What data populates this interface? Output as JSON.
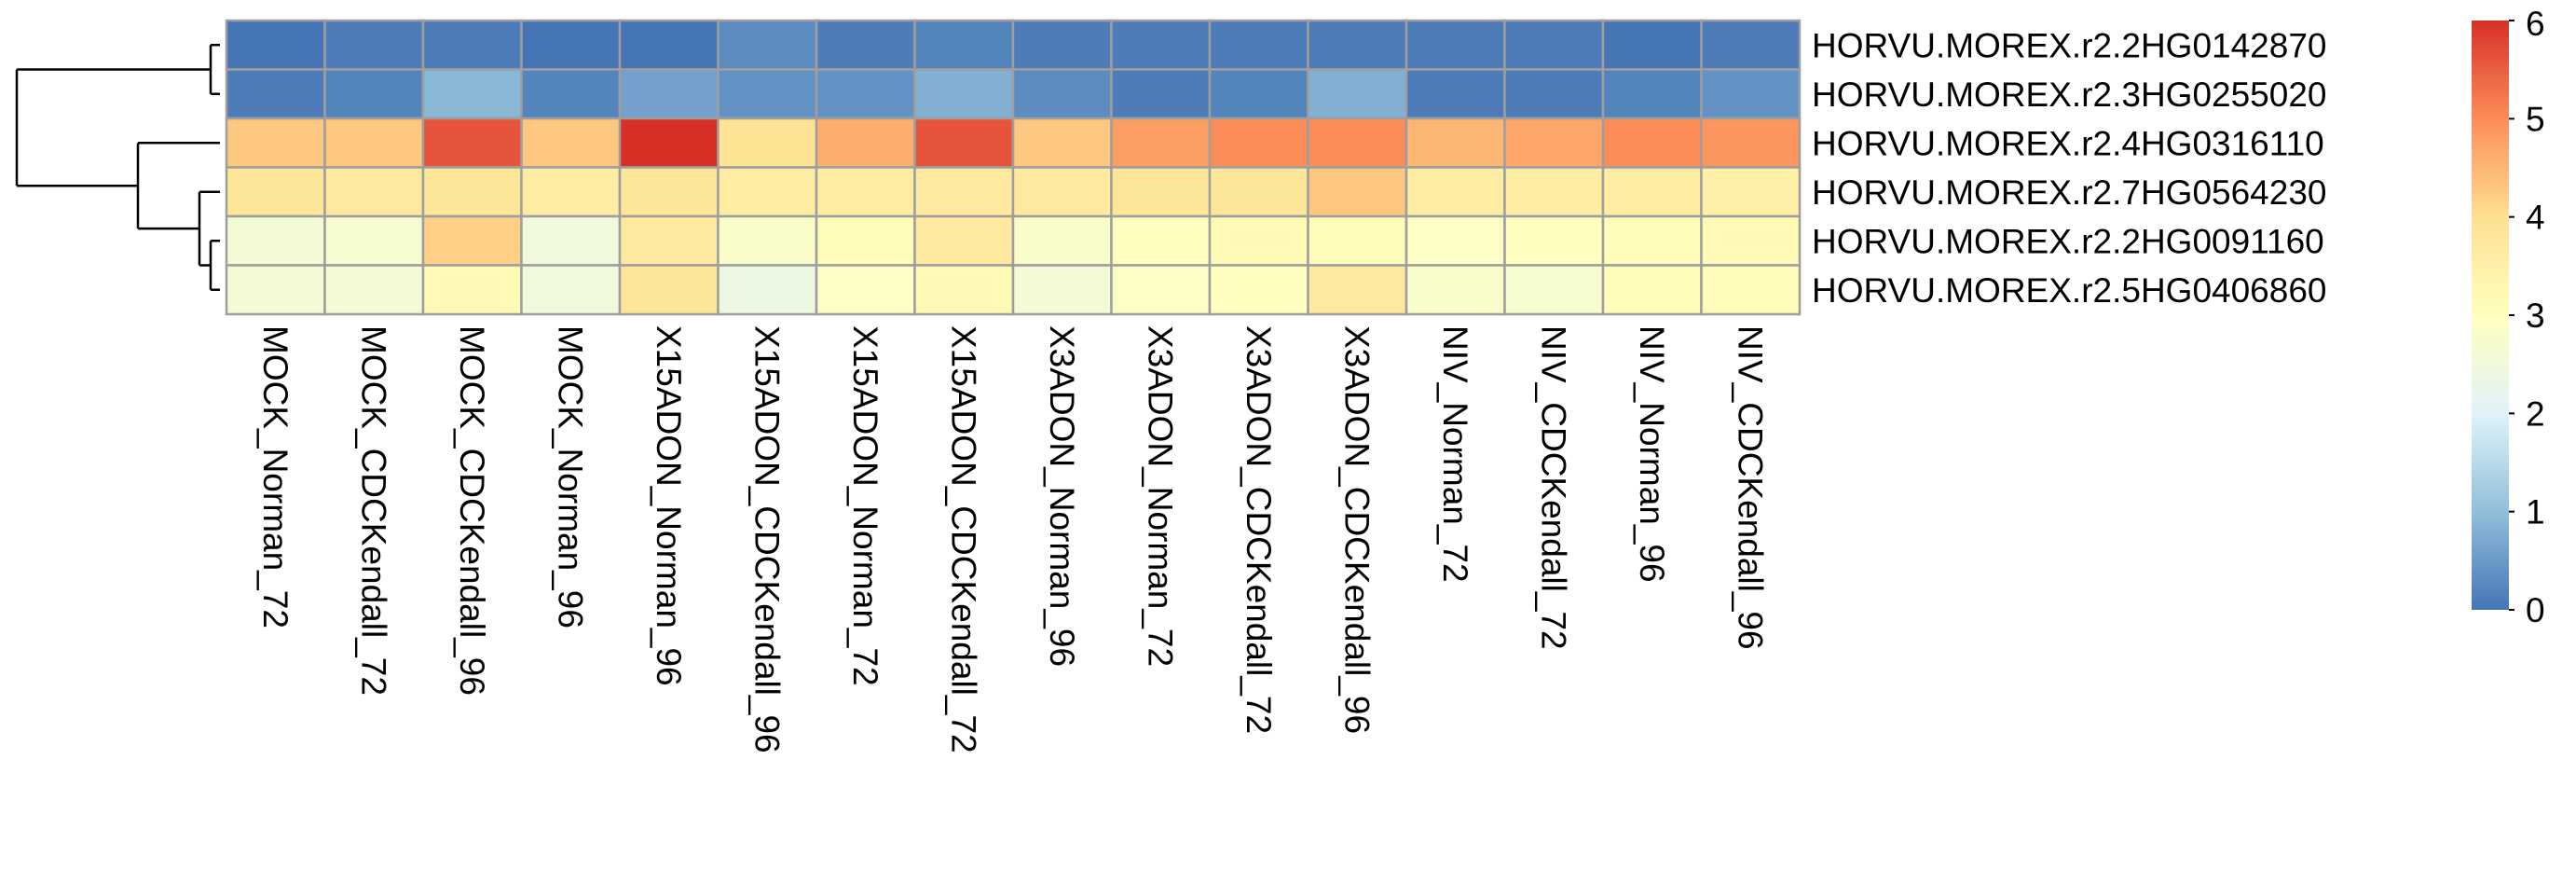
{
  "chart_data": {
    "type": "heatmap",
    "title": "",
    "rows": [
      "HORVU.MOREX.r2.2HG0142870",
      "HORVU.MOREX.r2.3HG0255020",
      "HORVU.MOREX.r2.4HG0316110",
      "HORVU.MOREX.r2.7HG0564230",
      "HORVU.MOREX.r2.2HG0091160",
      "HORVU.MOREX.r2.5HG0406860"
    ],
    "columns": [
      "MOCK_Norman_72",
      "MOCK_CDCKendall_72",
      "MOCK_CDCKendall_96",
      "MOCK_Norman_96",
      "X15ADON_Norman_96",
      "X15ADON_CDCKendall_96",
      "X15ADON_Norman_72",
      "X15ADON_CDCKendall_72",
      "X3ADON_Norman_96",
      "X3ADON_Norman_72",
      "X3ADON_CDCKendall_72",
      "X3ADON_CDCKendall_96",
      "NIV_Norman_72",
      "NIV_CDCKendall_72",
      "NIV_Norman_96",
      "NIV_CDCKendall_96"
    ],
    "values": [
      [
        0.0,
        0.1,
        0.1,
        0.0,
        0.0,
        0.3,
        0.1,
        0.2,
        0.1,
        0.1,
        0.1,
        0.1,
        0.1,
        0.1,
        0.0,
        0.1
      ],
      [
        0.1,
        0.2,
        0.9,
        0.2,
        0.6,
        0.4,
        0.4,
        0.8,
        0.3,
        0.1,
        0.2,
        0.8,
        0.1,
        0.1,
        0.2,
        0.4
      ],
      [
        4.3,
        4.3,
        5.6,
        4.3,
        6.0,
        3.9,
        4.6,
        5.6,
        4.3,
        4.8,
        5.0,
        5.0,
        4.5,
        4.7,
        5.0,
        4.9
      ],
      [
        3.8,
        3.7,
        3.8,
        3.6,
        3.8,
        3.6,
        3.6,
        3.7,
        3.7,
        3.8,
        3.8,
        4.3,
        3.6,
        3.6,
        3.6,
        3.5
      ],
      [
        2.6,
        2.7,
        4.2,
        2.5,
        3.7,
        2.8,
        3.1,
        3.7,
        2.8,
        3.0,
        3.2,
        3.1,
        2.9,
        3.0,
        3.1,
        3.2
      ],
      [
        2.6,
        2.6,
        3.2,
        2.5,
        3.8,
        2.4,
        2.9,
        3.2,
        2.6,
        2.9,
        3.0,
        3.7,
        2.8,
        2.7,
        3.1,
        3.1
      ]
    ],
    "color_scale": {
      "min": 0,
      "max": 6,
      "ticks": [
        "0",
        "1",
        "2",
        "3",
        "4",
        "5",
        "6"
      ],
      "stops": [
        "#4575B4",
        "#91BFDB",
        "#E0F3F8",
        "#FFFFBF",
        "#FEE090",
        "#FC8D59",
        "#D73027"
      ]
    },
    "cell_border_color": "#9E9E9E",
    "row_dendrogram": true,
    "legend": "right"
  }
}
